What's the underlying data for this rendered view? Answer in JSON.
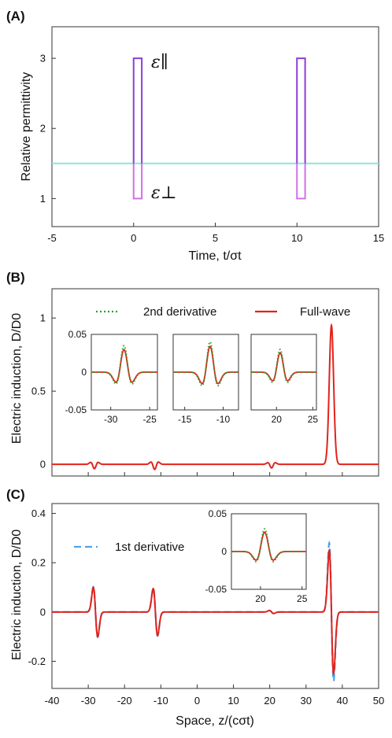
{
  "figure": {
    "panels": [
      {
        "label": "(A)",
        "xlabel": "Time, t/σt",
        "ylabel": "Relative permittivity"
      },
      {
        "label": "(B)",
        "xlabel": "",
        "ylabel": "Electric induction, D/D0"
      },
      {
        "label": "(C)",
        "xlabel": "Space,  z/(cσt)",
        "ylabel": "Electric induction, D/D0"
      }
    ]
  },
  "chart_data": [
    {
      "type": "line",
      "title": "",
      "xlabel": "Time, t/σt",
      "ylabel": "Relative permittivity",
      "xlim": [
        -5,
        15
      ],
      "ylim": [
        0.6,
        3.45
      ],
      "xticks": [
        "-5",
        "0",
        "5",
        "10",
        "15"
      ],
      "yticks": [
        "1",
        "2",
        "3"
      ],
      "annotations": [
        "ε∥",
        "ε⊥"
      ],
      "series": [
        {
          "name": "",
          "color": "#8fe3dc",
          "x": [
            -5,
            15
          ],
          "y": [
            1.5,
            1.5
          ]
        },
        {
          "name": "ε∥",
          "color": "#8a3fd8",
          "x": [
            0,
            0,
            0.5,
            0.5,
            10,
            10,
            10.5,
            10.5
          ],
          "y": [
            1.5,
            3,
            3,
            1.5,
            1.5,
            3,
            3,
            1.5
          ]
        },
        {
          "name": "ε⊥",
          "color": "#d070e8",
          "x": [
            0,
            0,
            0.5,
            0.5,
            10,
            10,
            10.5,
            10.5
          ],
          "y": [
            1.5,
            1,
            1,
            1.5,
            1.5,
            1,
            1,
            1.5
          ]
        }
      ]
    },
    {
      "type": "line",
      "title": "",
      "xlabel": "",
      "ylabel": "Electric induction, D/D0",
      "xlim": [
        -40,
        50
      ],
      "ylim": [
        -0.08,
        1.2
      ],
      "yticks": [
        "0",
        "0.5",
        "1"
      ],
      "legend": "top",
      "series": [
        {
          "name": "2nd derivative",
          "color": "#2ca02c",
          "style": "dotted"
        },
        {
          "name": "Full-wave",
          "color": "#e3231b",
          "style": "solid",
          "pulses": [
            {
              "center": -28.3,
              "amplitude": 0.03,
              "shape": "second-derivative"
            },
            {
              "center": -11.7,
              "amplitude": 0.035,
              "shape": "second-derivative"
            },
            {
              "center": 20.5,
              "amplitude": 0.025,
              "shape": "second-derivative"
            },
            {
              "center": 37.0,
              "amplitude": 0.95,
              "shape": "gaussian"
            }
          ]
        }
      ],
      "insets": [
        {
          "xlim": [
            -32.5,
            -24
          ],
          "ylim": [
            -0.05,
            0.05
          ],
          "xticks": [
            "-30",
            "-25"
          ],
          "yticks": [
            "0.05",
            "0",
            "-0.05"
          ],
          "center": -28.3,
          "amplitude": 0.035
        },
        {
          "xlim": [
            -16.5,
            -8
          ],
          "ylim": [
            -0.05,
            0.05
          ],
          "xticks": [
            "-15",
            "-10"
          ],
          "yticks": [],
          "center": -11.7,
          "amplitude": 0.04
        },
        {
          "xlim": [
            16.5,
            25.5
          ],
          "ylim": [
            -0.05,
            0.05
          ],
          "xticks": [
            "20",
            "25"
          ],
          "yticks": [],
          "center": 20.5,
          "amplitude": 0.03
        }
      ]
    },
    {
      "type": "line",
      "title": "",
      "xlabel": "Space,  z/(cσt)",
      "ylabel": "Electric induction, D/D0",
      "xlim": [
        -40,
        50
      ],
      "ylim": [
        -0.31,
        0.44
      ],
      "xticks": [
        "-40",
        "-30",
        "-20",
        "-10",
        "0",
        "10",
        "20",
        "30",
        "40",
        "50"
      ],
      "yticks": [
        "0.4",
        "0.2",
        "0",
        "-0.2"
      ],
      "legend": "top-left",
      "series": [
        {
          "name": "1st derivative",
          "color": "#4fa3e8",
          "style": "dashed"
        },
        {
          "name": "",
          "color": "#e3231b",
          "style": "solid",
          "pulses": [
            {
              "center": -28.0,
              "amplitude": 0.1,
              "shape": "first-derivative"
            },
            {
              "center": -11.5,
              "amplitude": 0.095,
              "shape": "first-derivative"
            },
            {
              "center": 20.5,
              "amplitude": 0.006,
              "shape": "first-derivative"
            },
            {
              "center": 37.0,
              "amplitude": 0.25,
              "shape": "first-derivative"
            }
          ]
        }
      ],
      "insets": [
        {
          "xlim": [
            16.5,
            25.5
          ],
          "ylim": [
            -0.05,
            0.05
          ],
          "xticks": [
            "20",
            "25"
          ],
          "yticks": [
            "0.05",
            "0",
            "-0.05"
          ],
          "center": 20.5,
          "amplitude": 0.03
        }
      ]
    }
  ]
}
